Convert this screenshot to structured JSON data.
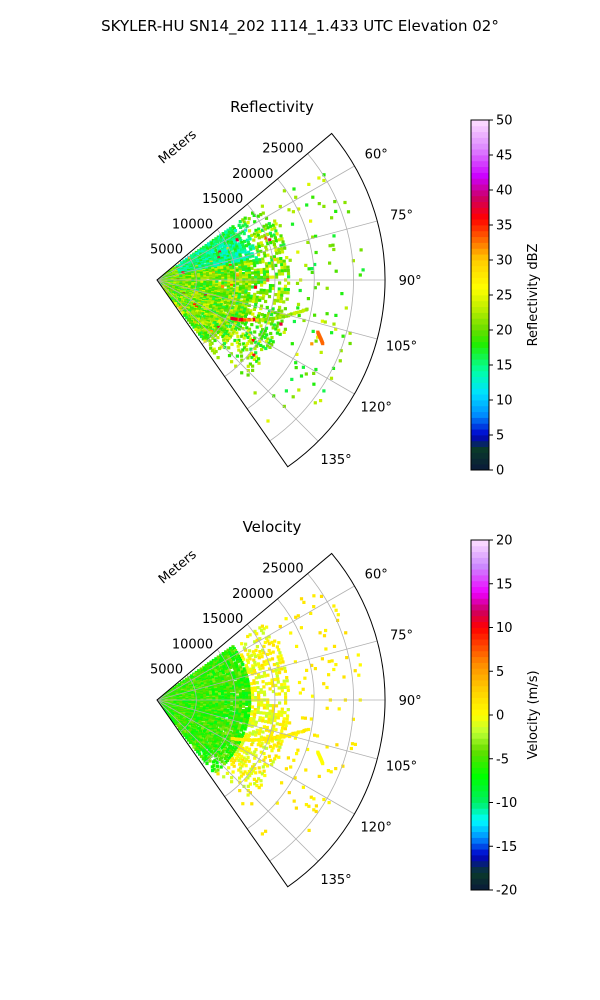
{
  "figure": {
    "title": "SKYLER-HU  SN14_202  1114_1.433 UTC Elevation 02°"
  },
  "chart_data": [
    {
      "type": "heatmap",
      "projection": "polar-sector",
      "title": "Reflectivity",
      "range_label": "Meters",
      "azimuth_range_deg": [
        50,
        145
      ],
      "range_limit_m": [
        0,
        29000
      ],
      "range_ticks": [
        5000,
        10000,
        15000,
        20000,
        25000
      ],
      "range_tick_labels": [
        "5000",
        "10000",
        "15000",
        "20000",
        "25000"
      ],
      "azimuth_ticks": [
        60,
        75,
        90,
        105,
        120,
        135
      ],
      "azimuth_tick_labels": [
        "60°",
        "75°",
        "90°",
        "105°",
        "120°",
        "135°"
      ],
      "grid": true,
      "colorbar": {
        "label": "Reflectivity dBZ",
        "min": 0,
        "max": 50,
        "ticks": [
          0,
          5,
          10,
          15,
          20,
          25,
          30,
          35,
          40,
          45,
          50
        ],
        "tick_labels": [
          "0",
          "5",
          "10",
          "15",
          "20",
          "25",
          "30",
          "35",
          "40",
          "45",
          "50"
        ],
        "stops": [
          [
            0,
            "#0a1a3a"
          ],
          [
            3,
            "#0a3a2a"
          ],
          [
            5,
            "#0000cc"
          ],
          [
            8,
            "#0090ff"
          ],
          [
            11,
            "#00e0ff"
          ],
          [
            14,
            "#00ffaa"
          ],
          [
            18,
            "#22ee00"
          ],
          [
            20,
            "#66dd00"
          ],
          [
            23,
            "#bbee00"
          ],
          [
            26,
            "#ffff00"
          ],
          [
            30,
            "#ffcc00"
          ],
          [
            33,
            "#ff6600"
          ],
          [
            36,
            "#ff0000"
          ],
          [
            39,
            "#cc0066"
          ],
          [
            42,
            "#cc00ff"
          ],
          [
            46,
            "#dd88ff"
          ],
          [
            50,
            "#ffe0ff"
          ]
        ]
      }
    },
    {
      "type": "heatmap",
      "projection": "polar-sector",
      "title": "Velocity",
      "range_label": "Meters",
      "azimuth_range_deg": [
        50,
        145
      ],
      "range_limit_m": [
        0,
        29000
      ],
      "range_ticks": [
        5000,
        10000,
        15000,
        20000,
        25000
      ],
      "range_tick_labels": [
        "5000",
        "10000",
        "15000",
        "20000",
        "25000"
      ],
      "azimuth_ticks": [
        60,
        75,
        90,
        105,
        120,
        135
      ],
      "azimuth_tick_labels": [
        "60°",
        "75°",
        "90°",
        "105°",
        "120°",
        "135°"
      ],
      "grid": true,
      "colorbar": {
        "label": "Velocity (m/s)",
        "min": -20,
        "max": 20,
        "ticks": [
          -20,
          -15,
          -10,
          -5,
          0,
          5,
          10,
          15,
          20
        ],
        "tick_labels": [
          "-20",
          "-15",
          "-10",
          "-5",
          "0",
          "5",
          "10",
          "15",
          "20"
        ],
        "stops": [
          [
            -20,
            "#0a1a3a"
          ],
          [
            -18,
            "#0a3a2a"
          ],
          [
            -16,
            "#0000cc"
          ],
          [
            -14,
            "#0090ff"
          ],
          [
            -12,
            "#00ffff"
          ],
          [
            -10,
            "#00ee66"
          ],
          [
            -7,
            "#00ff00"
          ],
          [
            -4,
            "#66dd00"
          ],
          [
            -2,
            "#bbff33"
          ],
          [
            0,
            "#ffff00"
          ],
          [
            3,
            "#ffcc00"
          ],
          [
            6,
            "#ff8800"
          ],
          [
            10,
            "#ff0000"
          ],
          [
            12,
            "#cc0066"
          ],
          [
            14,
            "#ee00ff"
          ],
          [
            17,
            "#cc88ff"
          ],
          [
            20,
            "#ffe0ff"
          ]
        ]
      }
    }
  ]
}
